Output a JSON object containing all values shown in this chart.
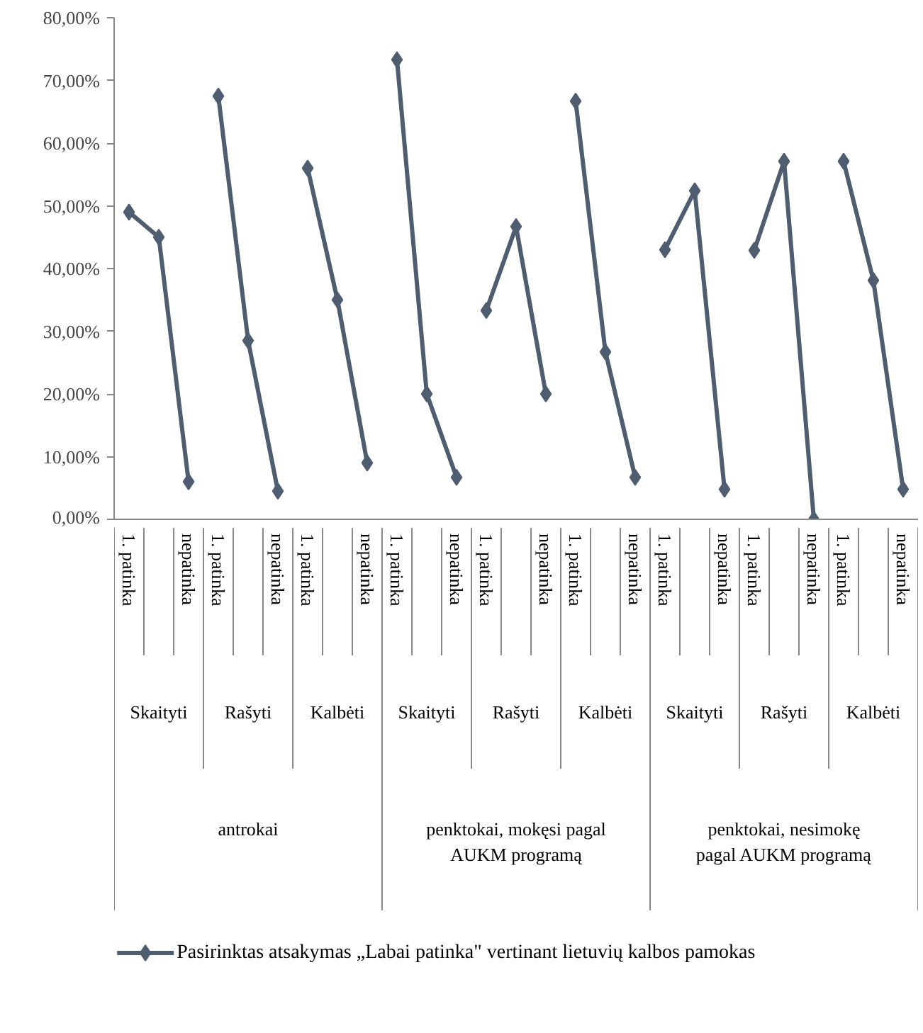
{
  "chart_data": {
    "type": "line",
    "categories": [
      "1. patinka",
      null,
      "nepatinka",
      "1. patinka",
      null,
      "nepatinka",
      "1. patinka",
      null,
      "nepatinka",
      "1. patinka",
      null,
      "nepatinka",
      "1. patinka",
      null,
      "nepatinka",
      "1. patinka",
      null,
      "nepatinka",
      "1. patinka",
      null,
      "nepatinka",
      "1. patinka",
      null,
      "nepatinka",
      "1. patinka",
      null,
      "nepatinka"
    ],
    "series": [
      {
        "name": "Pasirinktas atsakymas „Labai patinka\" vertinant lietuvių kalbos pamokas",
        "color": "#4f5d70",
        "values": [
          49,
          45,
          6,
          67.5,
          28.5,
          4.5,
          56,
          35,
          9,
          73.3,
          20,
          6.7,
          33.3,
          46.7,
          20,
          66.7,
          26.7,
          6.7,
          43,
          52.4,
          4.8,
          42.9,
          57.1,
          0,
          57.1,
          38.1,
          4.8
        ]
      }
    ],
    "annotations": [
      "Skaityti",
      "Rašyti",
      "Kalbėti",
      "Skaityti",
      "Rašyti",
      "Kalbėti",
      "Skaityti",
      "Rašyti",
      "Kalbėti",
      "antrokai",
      "penktokai, mokęsi pagal AUKM programą",
      "penktokai, nesimokę pagal AUKM programą"
    ],
    "ylim": [
      0,
      80
    ],
    "yticks": [
      {
        "value": 0,
        "label": "0,00%"
      },
      {
        "value": 10,
        "label": "10,00%"
      },
      {
        "value": 20,
        "label": "20,00%"
      },
      {
        "value": 30,
        "label": "30,00%"
      },
      {
        "value": 40,
        "label": "40,00%"
      },
      {
        "value": 50,
        "label": "50,00%"
      },
      {
        "value": 60,
        "label": "60,00%"
      },
      {
        "value": 70,
        "label": "70,00%"
      },
      {
        "value": 80,
        "label": "80,00%"
      }
    ],
    "grid": false,
    "legend": "bottom",
    "marker": "diamond",
    "line_style": "solid"
  }
}
